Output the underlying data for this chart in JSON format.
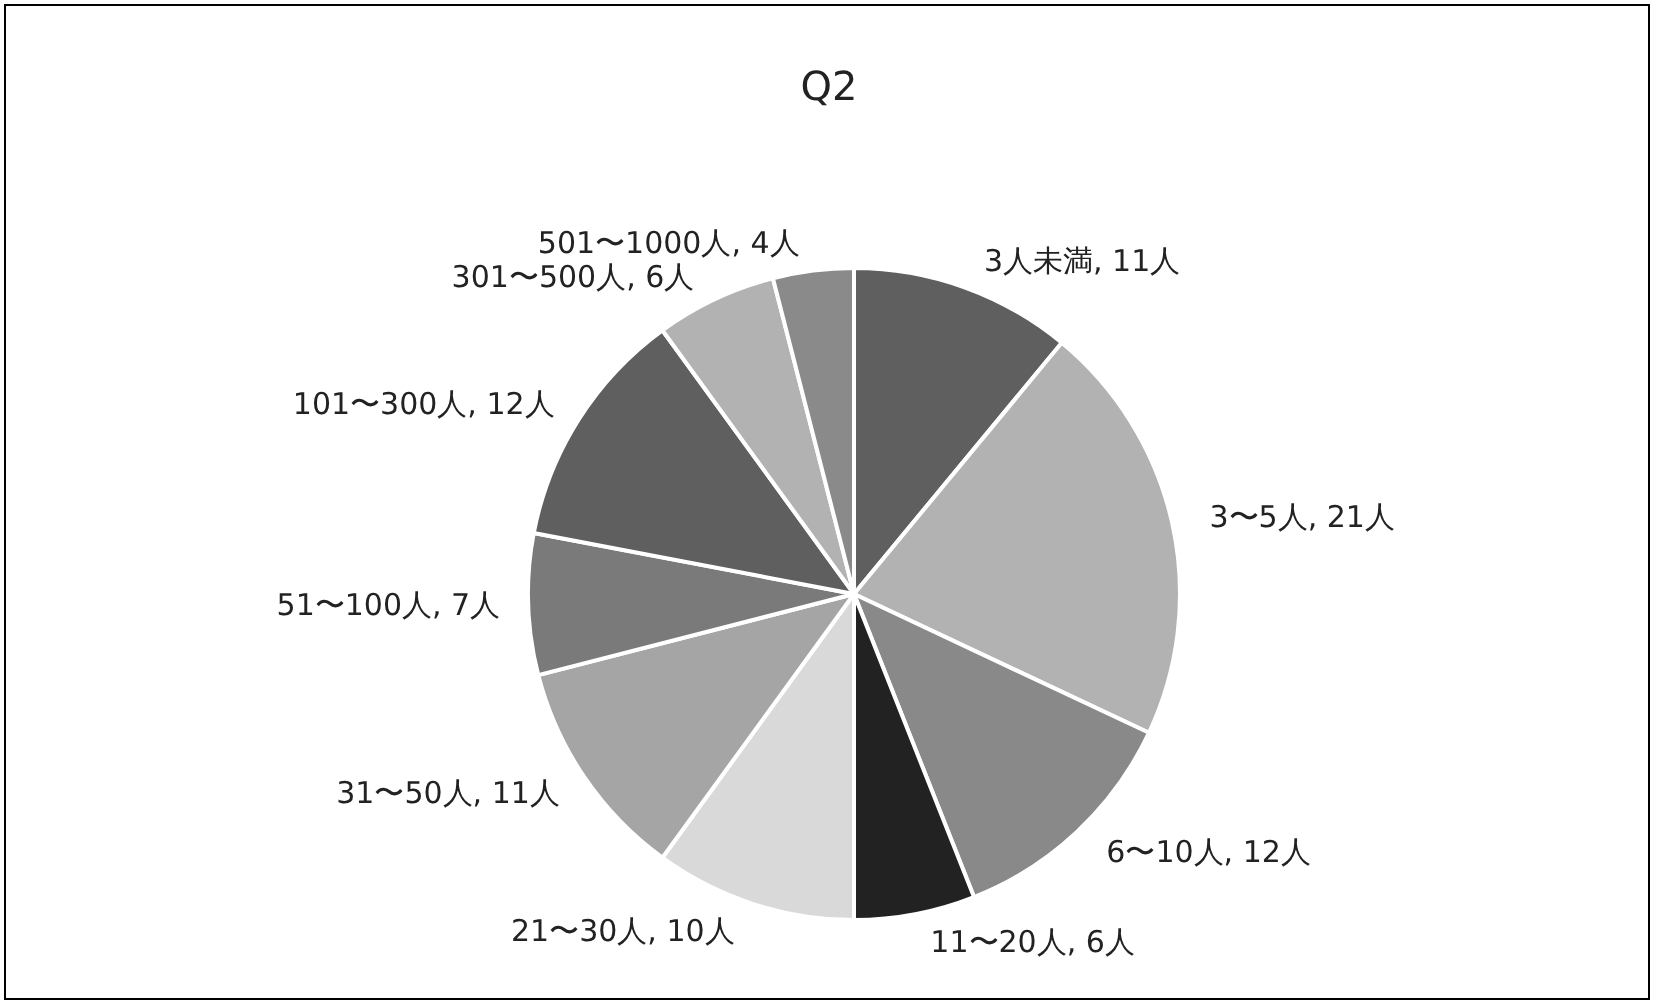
{
  "chart_data": {
    "type": "pie",
    "title": "Q2",
    "categories": [
      "3人未満",
      "3〜5人",
      "6〜10人",
      "11〜20人",
      "21〜30人",
      "31〜50人",
      "51〜100人",
      "101〜300人",
      "301〜500人",
      "501〜1000人"
    ],
    "values": [
      11,
      21,
      12,
      6,
      10,
      11,
      7,
      12,
      6,
      4
    ],
    "value_labels": [
      "11人",
      "21人",
      "12人",
      "6人",
      "10人",
      "11人",
      "7人",
      "12人",
      "6人",
      "4人"
    ],
    "colors": [
      "#5f5f5f",
      "#b2b2b2",
      "#898989",
      "#222222",
      "#d9d9d9",
      "#a5a5a5",
      "#7a7a7a",
      "#5f5f5f",
      "#b2b2b2",
      "#8a8a8a"
    ],
    "legend": false
  }
}
